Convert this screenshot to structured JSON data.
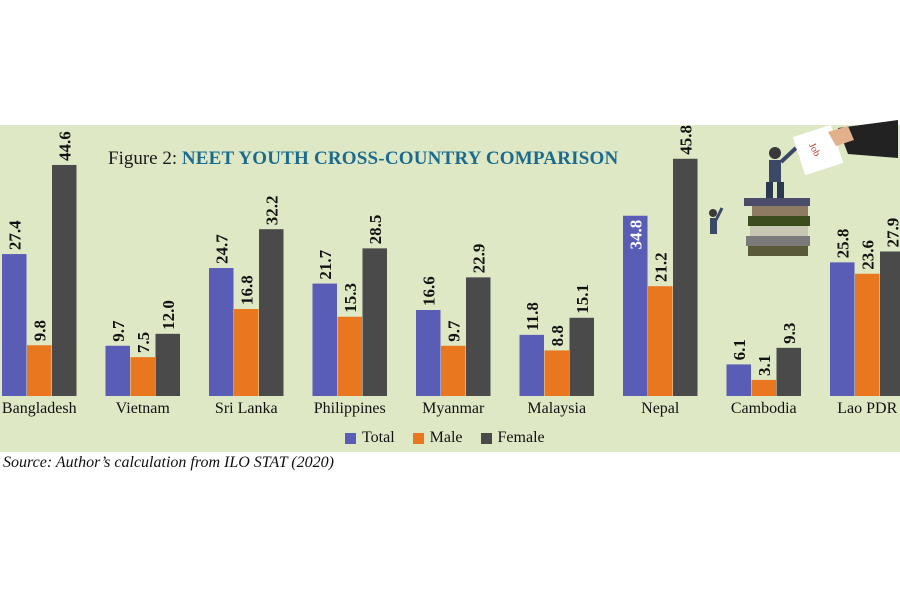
{
  "title_prefix": "Figure 2:",
  "title": "NEET YOUTH CROSS-COUNTRY COMPARISON",
  "source": "Source: Author’s calculation from ILO STAT (2020)",
  "colors": {
    "Total": "#5a5db5",
    "Male": "#e9771f",
    "Female": "#4a4a4a",
    "panel": "#dfe8c5",
    "title": "#1b6b8e"
  },
  "chart_data": {
    "type": "bar",
    "title": "NEET YOUTH CROSS-COUNTRY COMPARISON",
    "categories": [
      "Bangladesh",
      "Vietnam",
      "Sri Lanka",
      "Philippines",
      "Myanmar",
      "Malaysia",
      "Nepal",
      "Cambodia",
      "Lao PDR"
    ],
    "series": [
      {
        "name": "Total",
        "values": [
          27.4,
          9.7,
          24.7,
          21.7,
          16.6,
          11.8,
          34.8,
          6.1,
          25.8
        ]
      },
      {
        "name": "Male",
        "values": [
          9.8,
          7.5,
          16.8,
          15.3,
          9.7,
          8.8,
          21.2,
          3.1,
          23.6
        ]
      },
      {
        "name": "Female",
        "values": [
          44.6,
          12.0,
          32.2,
          28.5,
          22.9,
          15.1,
          45.8,
          9.3,
          27.9
        ]
      }
    ],
    "value_labels": [
      [
        "27.4",
        "9.7",
        "24.7",
        "21.7",
        "16.6",
        "11.8",
        "34.8",
        "6.1",
        "25.8"
      ],
      [
        "9.8",
        "7.5",
        "16.8",
        "15.3",
        "9.7",
        "8.8",
        "21.2",
        "3.1",
        "23.6"
      ],
      [
        "44.6",
        "12.0",
        "32.2",
        "28.5",
        "22.9",
        "15.1",
        "45.8",
        "9.3",
        "27.9"
      ]
    ],
    "legend": [
      "Total",
      "Male",
      "Female"
    ],
    "legend_position": "bottom",
    "ylim": [
      0,
      50
    ],
    "grid": false,
    "xlabel": "",
    "ylabel": ""
  },
  "illustration": {
    "paper_text": "Job",
    "icon": "job-seekers-on-books-icon"
  }
}
